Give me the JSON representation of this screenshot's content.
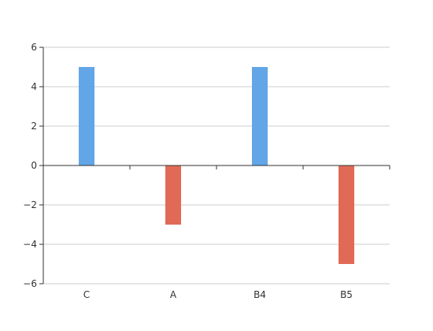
{
  "chart_data": {
    "type": "bar",
    "categories": [
      "C",
      "A",
      "B4",
      "B5"
    ],
    "values": [
      5,
      -3,
      5,
      -5
    ],
    "ylim": [
      -6,
      6
    ],
    "yticks": [
      -6,
      -4,
      -2,
      0,
      2,
      4,
      6
    ],
    "ytick_labels": [
      "−6",
      "−4",
      "−2",
      "0",
      "2",
      "4",
      "6"
    ],
    "grid": true,
    "colors": {
      "positive": "#62a6e8",
      "negative": "#e06a56"
    }
  }
}
